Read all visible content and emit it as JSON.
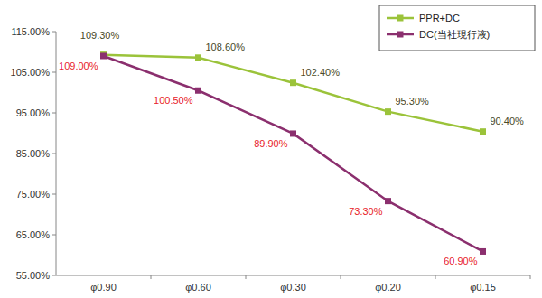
{
  "chart_data": {
    "type": "line",
    "categories": [
      "φ0.90",
      "φ0.60",
      "φ0.30",
      "φ0.20",
      "φ0.15"
    ],
    "series": [
      {
        "name": "PPR+DC",
        "color": "#9bc33a",
        "marker": "square",
        "values": [
          109.3,
          108.6,
          102.4,
          95.3,
          90.4
        ],
        "value_labels": [
          "109.30%",
          "108.60%",
          "102.40%",
          "95.30%",
          "90.40%"
        ]
      },
      {
        "name": "DC(当社現行液)",
        "color": "#8b2f6e",
        "marker": "square",
        "values": [
          109.0,
          100.5,
          89.9,
          73.3,
          60.9
        ],
        "value_labels": [
          "109.00%",
          "100.50%",
          "89.90%",
          "73.30%",
          "60.90%"
        ]
      }
    ],
    "ylim": [
      55,
      115
    ],
    "yticks": [
      {
        "value": 55,
        "label": "55.00%"
      },
      {
        "value": 65,
        "label": "65.00%"
      },
      {
        "value": 75,
        "label": "75.00%"
      },
      {
        "value": 85,
        "label": "85.00%"
      },
      {
        "value": 95,
        "label": "95.00%"
      },
      {
        "value": 105,
        "label": "105.00%"
      },
      {
        "value": 115,
        "label": "115.00%"
      }
    ],
    "grid": false,
    "legend": "top-right",
    "data_labels": true
  }
}
